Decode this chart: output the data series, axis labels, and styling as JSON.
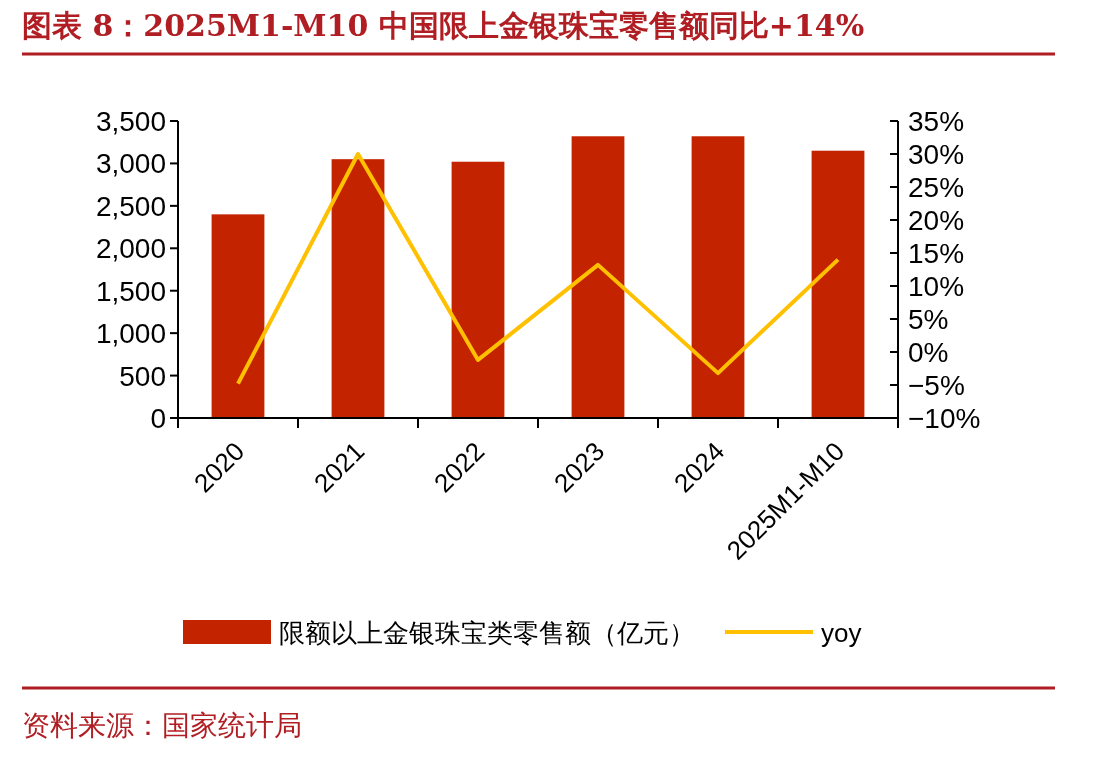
{
  "chart_data": {
    "type": "bar",
    "title": "图表 8：2025M1-M10 中国限上金银珠宝零售额同比+14%",
    "annotations": [
      "资料来源：国家统计局"
    ],
    "categories": [
      "2020",
      "2021",
      "2022",
      "2023",
      "2024",
      "2025M1-M10"
    ],
    "series": [
      {
        "name": "限额以上金银珠宝类零售额（亿元）",
        "color": "#c42300",
        "values": [
          2400,
          3050,
          3020,
          3320,
          3320,
          3150
        ]
      },
      {
        "name": "yoy",
        "type": "line",
        "axis": "y2",
        "color": "#ffc000",
        "values": [
          -4.8,
          30.0,
          -1.2,
          13.2,
          -3.2,
          14.0
        ]
      }
    ],
    "ylim": [
      0,
      3500
    ],
    "yticks": [
      0,
      500,
      {
        "value": 1000,
        "label": "1,000"
      },
      {
        "value": 1500,
        "label": "1,500"
      },
      {
        "value": 2000,
        "label": "2,000"
      },
      {
        "value": 2500,
        "label": "2,500"
      },
      {
        "value": 3000,
        "label": "3,000"
      },
      {
        "value": 3500,
        "label": "3,500"
      }
    ],
    "y2lim": [
      -10,
      35
    ],
    "y2ticks": [
      {
        "value": -10,
        "label": "−10%"
      },
      {
        "value": -5,
        "label": "−5%"
      },
      {
        "value": 0,
        "label": "0%"
      },
      {
        "value": 5,
        "label": "5%"
      },
      {
        "value": 10,
        "label": "10%"
      },
      {
        "value": 15,
        "label": "15%"
      },
      {
        "value": 20,
        "label": "20%"
      },
      {
        "value": 25,
        "label": "25%"
      },
      {
        "value": 30,
        "label": "30%"
      },
      {
        "value": 35,
        "label": "35%"
      }
    ],
    "legend": "bottom"
  }
}
